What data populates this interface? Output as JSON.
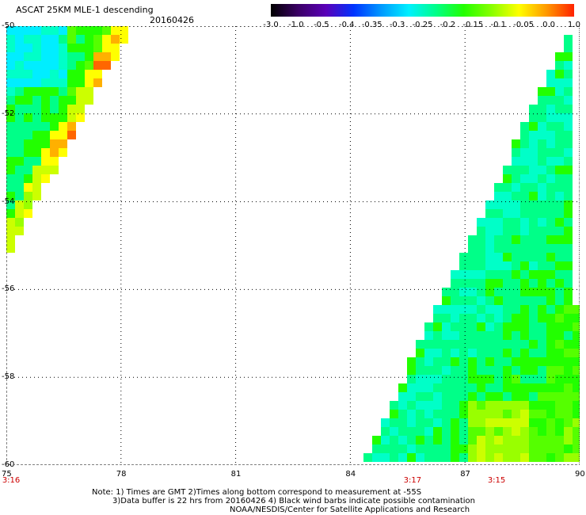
{
  "header": {
    "title": "ASCAT 25KM MLE-1 descending",
    "date": "20160426"
  },
  "colorbar": {
    "ticks": [
      "-3.0",
      "-1.0",
      "-0.5",
      "-0.4",
      "-0.35",
      "-0.3",
      "-0.25",
      "-0.2",
      "-0.15",
      "-0.1",
      "-0.05",
      "0.0",
      "1.0"
    ],
    "colors": [
      "#000000",
      "#3b0066",
      "#5a00b8",
      "#0033ff",
      "#0099ff",
      "#00f0ff",
      "#00ff88",
      "#22ff00",
      "#88ff00",
      "#ffff00",
      "#ff9900",
      "#ff2200"
    ]
  },
  "map": {
    "lon_ticks": [
      "75",
      "78",
      "81",
      "84",
      "87",
      "90"
    ],
    "lat_ticks": [
      "-50",
      "-52",
      "-54",
      "-56",
      "-58",
      "-60"
    ],
    "lon_range": [
      75,
      90
    ],
    "lat_range": [
      -50,
      -60
    ],
    "grid": "dotted",
    "swaths": [
      {
        "name": "west",
        "corners": [
          [
            75,
            -50
          ],
          [
            78.3,
            -50
          ],
          [
            75,
            -55.3
          ]
        ],
        "time": "3:16"
      },
      {
        "name": "east",
        "corners": [
          [
            89.8,
            -50
          ],
          [
            90,
            -60
          ],
          [
            84.3,
            -60
          ]
        ],
        "time": "3:17"
      }
    ],
    "time_labels": [
      {
        "text": "3:16",
        "lon": 75.1
      },
      {
        "text": "3:17",
        "lon": 85.6
      },
      {
        "text": "3:15",
        "lon": 87.8
      }
    ]
  },
  "notes": {
    "line1": "Note: 1) Times are GMT 2)Times along bottom correspond to measurement at -55S",
    "line2": "3)Data buffer is 22 hrs from 20160426 4) Black wind barbs indicate possible contamination",
    "line3": "NOAA/NESDIS/Center for Satellite Applications and Research"
  }
}
